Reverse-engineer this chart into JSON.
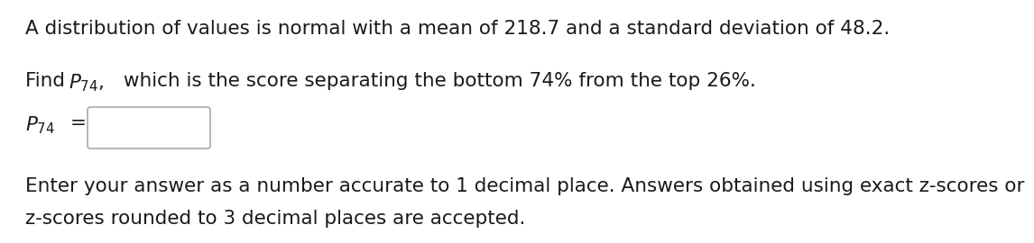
{
  "line1": "A distribution of values is normal with a mean of 218.7 and a standard deviation of 48.2.",
  "line2a": "Find ",
  "line2b": "$P_{74}$,",
  "line2c": " which is the score separating the bottom 74% from the top 26%.",
  "line3a": "$P_{74}$",
  "line3b": " =",
  "line4": "Enter your answer as a number accurate to 1 decimal place. Answers obtained using exact z-scores or",
  "line5": "z-scores rounded to 3 decimal places are accepted.",
  "bg_color": "#ffffff",
  "text_color": "#1a1a1a",
  "font_size": 15.5,
  "box_color": "#b0b0b0",
  "box_fill": "#ffffff"
}
